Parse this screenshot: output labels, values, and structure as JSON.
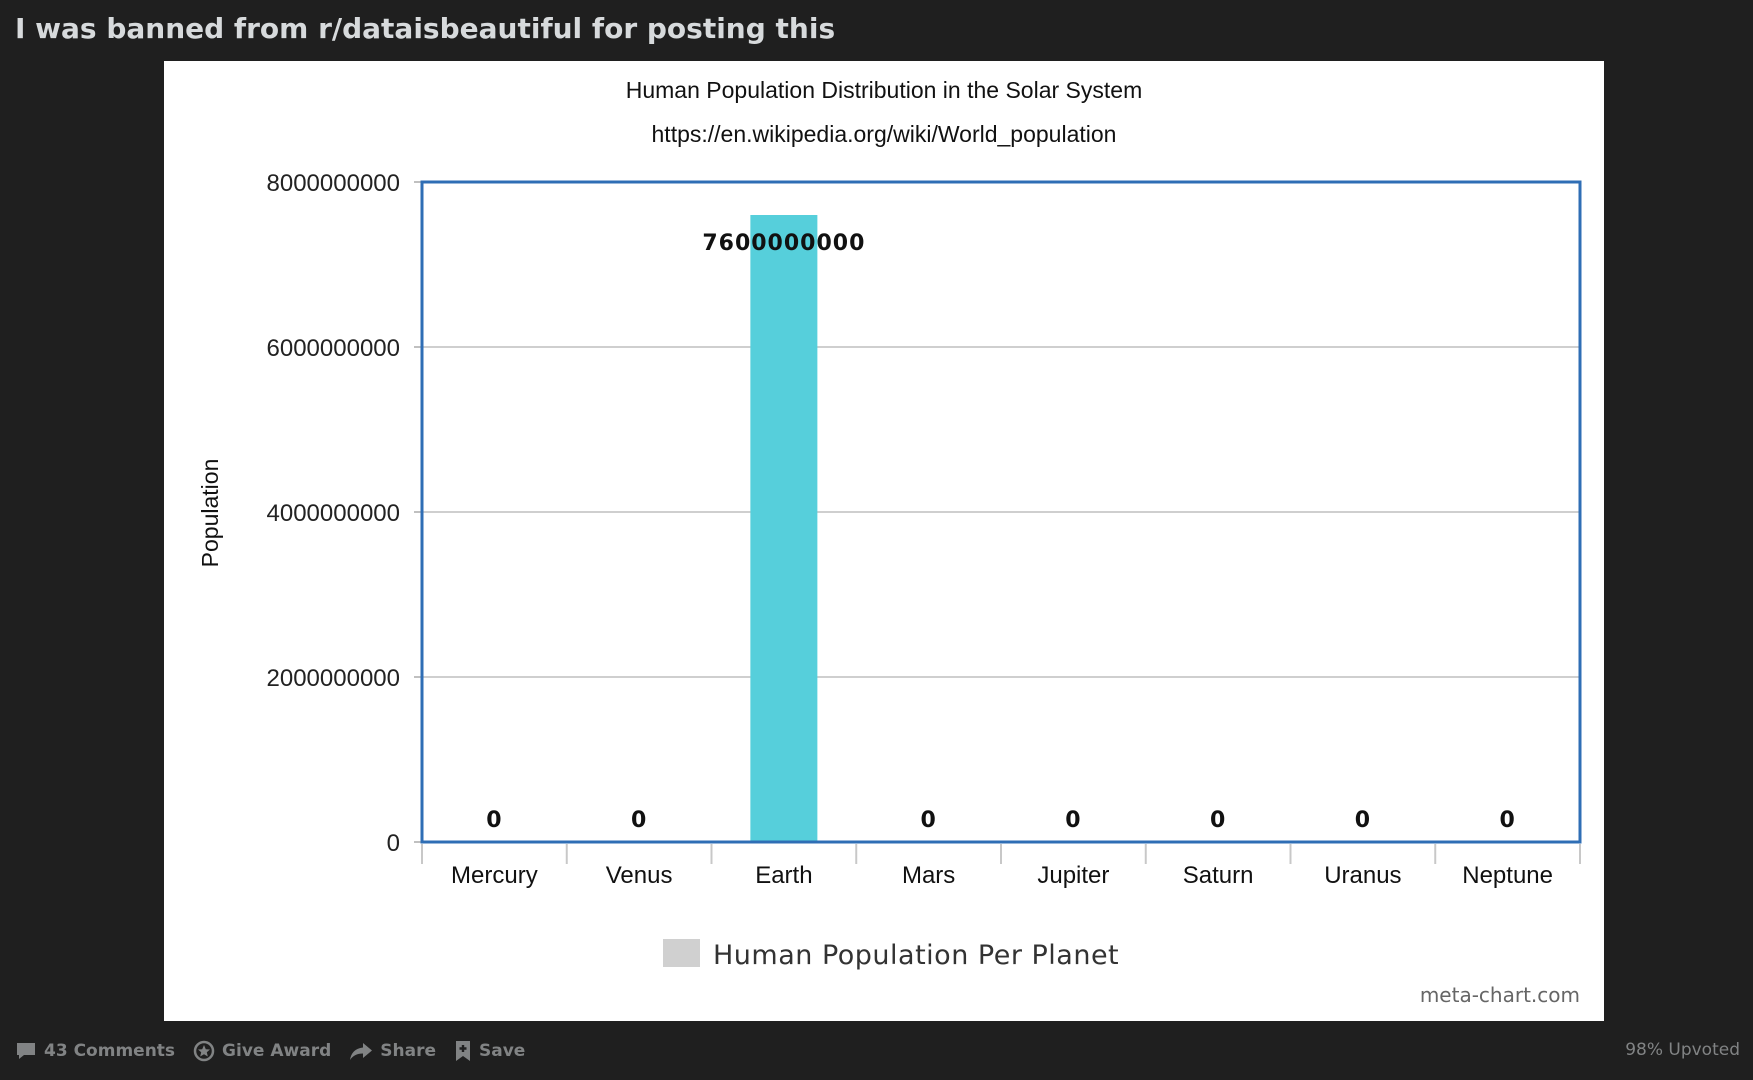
{
  "post": {
    "title": "I was banned from r/dataisbeautiful for posting this"
  },
  "actions": {
    "comments": "43 Comments",
    "award": "Give Award",
    "share": "Share",
    "save": "Save",
    "upvoted": "98% Upvoted"
  },
  "chart_data": {
    "type": "bar",
    "title": "Human Population Distribution in the Solar System",
    "subtitle": "https://en.wikipedia.org/wiki/World_population",
    "ylabel": "Population",
    "xlabel": "",
    "categories": [
      "Mercury",
      "Venus",
      "Earth",
      "Mars",
      "Jupiter",
      "Saturn",
      "Uranus",
      "Neptune"
    ],
    "series": [
      {
        "name": "Human Population Per Planet",
        "values": [
          0,
          0,
          7600000000,
          0,
          0,
          0,
          0,
          0
        ],
        "color": "#56cfdb"
      }
    ],
    "data_labels": [
      "0",
      "0",
      "7600000000",
      "0",
      "0",
      "0",
      "0",
      "0"
    ],
    "ylim": [
      0,
      8000000000
    ],
    "yticks": [
      "0",
      "2000000000",
      "4000000000",
      "6000000000",
      "8000000000"
    ],
    "grid": true,
    "legend": "bottom-center",
    "legend_swatch_color": "#d0d0d0",
    "frame_color": "#2f6eb5",
    "credit": "meta-chart.com"
  }
}
